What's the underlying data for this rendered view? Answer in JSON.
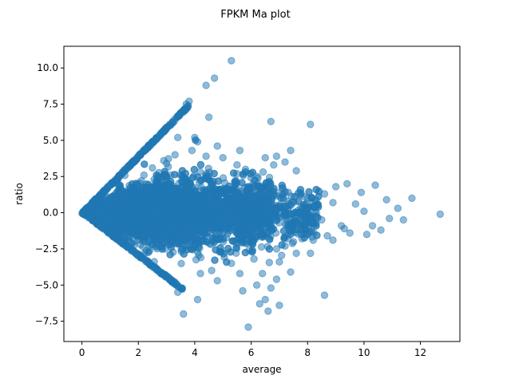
{
  "chart_data": {
    "type": "scatter",
    "title": "FPKM Ma plot",
    "xlabel": "average",
    "ylabel": "ratio",
    "xlim": [
      -0.64,
      13.4
    ],
    "ylim": [
      -8.9,
      11.5
    ],
    "xticks": [
      0,
      2,
      4,
      6,
      8,
      10,
      12
    ],
    "xtick_labels": [
      "0",
      "2",
      "4",
      "6",
      "8",
      "10",
      "12"
    ],
    "yticks": [
      -7.5,
      -5.0,
      -2.5,
      0.0,
      2.5,
      5.0,
      7.5,
      10.0
    ],
    "ytick_labels": [
      "−7.5",
      "−5.0",
      "−2.5",
      "0.0",
      "2.5",
      "5.0",
      "7.5",
      "10.0"
    ],
    "marker_color": "#1f77b4",
    "marker_alpha": 0.5,
    "grid": false,
    "legend": "none",
    "points": [
      [
        5.3,
        10.5
      ],
      [
        4.7,
        9.3
      ],
      [
        4.4,
        8.8
      ],
      [
        3.8,
        7.7
      ],
      [
        3.7,
        7.5
      ],
      [
        4.5,
        6.6
      ],
      [
        6.7,
        6.3
      ],
      [
        8.1,
        6.1
      ],
      [
        4.0,
        5.2
      ],
      [
        3.4,
        5.2
      ],
      [
        4.1,
        4.9
      ],
      [
        4.8,
        4.6
      ],
      [
        5.6,
        4.3
      ],
      [
        7.4,
        4.3
      ],
      [
        6.5,
        3.8
      ],
      [
        6.9,
        3.9
      ],
      [
        7.2,
        3.5
      ],
      [
        6.8,
        3.3
      ],
      [
        7.6,
        2.9
      ],
      [
        9.4,
        2.0
      ],
      [
        10.4,
        1.9
      ],
      [
        11.7,
        1.0
      ],
      [
        12.7,
        -0.1
      ],
      [
        9.0,
        1.8
      ],
      [
        9.9,
        1.4
      ],
      [
        10.8,
        0.9
      ],
      [
        11.2,
        0.3
      ],
      [
        11.4,
        -0.5
      ],
      [
        10.9,
        -0.4
      ],
      [
        10.3,
        -0.9
      ],
      [
        10.6,
        -1.2
      ],
      [
        10.1,
        -1.5
      ],
      [
        9.5,
        -1.4
      ],
      [
        9.2,
        -0.9
      ],
      [
        9.7,
        0.6
      ],
      [
        10.0,
        0.1
      ],
      [
        8.5,
        -0.5
      ],
      [
        8.9,
        0.7
      ],
      [
        9.3,
        -1.1
      ],
      [
        8.2,
        -1.9
      ],
      [
        8.9,
        -1.9
      ],
      [
        8.7,
        -1.6
      ],
      [
        8.6,
        1.3
      ],
      [
        8.3,
        0.9
      ],
      [
        7.8,
        -1.8
      ],
      [
        7.5,
        -2.0
      ],
      [
        8.6,
        -5.7
      ],
      [
        8.1,
        -2.8
      ],
      [
        7.6,
        -2.8
      ],
      [
        7.2,
        -2.3
      ],
      [
        6.9,
        -2.5
      ],
      [
        7.0,
        -3.4
      ],
      [
        7.4,
        -4.1
      ],
      [
        6.9,
        -4.6
      ],
      [
        6.7,
        -5.2
      ],
      [
        6.2,
        -5.0
      ],
      [
        6.5,
        -6.0
      ],
      [
        7.0,
        -6.4
      ],
      [
        6.6,
        -6.8
      ],
      [
        6.3,
        -6.3
      ],
      [
        5.7,
        -5.4
      ],
      [
        6.4,
        -4.2
      ],
      [
        5.6,
        -4.2
      ],
      [
        4.8,
        -4.7
      ],
      [
        4.1,
        -6.0
      ],
      [
        3.6,
        -7.0
      ],
      [
        3.4,
        -5.5
      ],
      [
        5.9,
        -7.9
      ],
      [
        6.1,
        -3.2
      ],
      [
        5.3,
        -3.5
      ],
      [
        4.6,
        -4.0
      ],
      [
        4.2,
        -4.2
      ],
      [
        5.0,
        3.8
      ],
      [
        5.8,
        3.0
      ],
      [
        6.2,
        2.5
      ],
      [
        6.6,
        2.0
      ],
      [
        7.1,
        1.7
      ],
      [
        7.7,
        1.4
      ],
      [
        8.0,
        1.0
      ],
      [
        5.5,
        3.3
      ],
      [
        4.4,
        3.9
      ],
      [
        3.9,
        4.3
      ],
      [
        3.3,
        4.0
      ],
      [
        2.9,
        3.6
      ],
      [
        3.0,
        3.4
      ],
      [
        2.5,
        3.1
      ],
      [
        2.2,
        2.6
      ]
    ],
    "envelope": {
      "upper_slope": 1.97,
      "upper_end_x": 3.8,
      "lower_slope": -1.5,
      "lower_end_x": 3.6
    },
    "core": {
      "x_min": 0.05,
      "x_max": 8.4,
      "center_peak": 3.2,
      "spread_peak": 1.3,
      "n": 5200
    }
  }
}
